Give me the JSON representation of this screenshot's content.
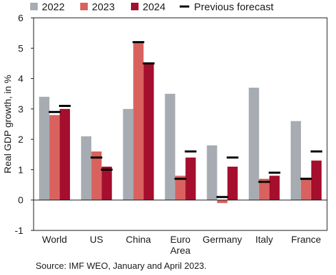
{
  "chart_data": {
    "type": "bar",
    "title": "",
    "xlabel": "",
    "ylabel": "Real GDP growth, in %",
    "ylim": [
      -1,
      6
    ],
    "yticks": [
      -1,
      0,
      1,
      2,
      3,
      4,
      5,
      6
    ],
    "categories": [
      [
        "World"
      ],
      [
        "US"
      ],
      [
        "China"
      ],
      [
        "Euro",
        "Area"
      ],
      [
        "Germany"
      ],
      [
        "Italy"
      ],
      [
        "France"
      ]
    ],
    "series": [
      {
        "name": "2022",
        "color": "#a6acb2",
        "values": [
          3.4,
          2.1,
          3.0,
          3.5,
          1.8,
          3.7,
          2.6
        ]
      },
      {
        "name": "2023",
        "color": "#d9625f",
        "values": [
          2.8,
          1.6,
          5.2,
          0.8,
          -0.1,
          0.7,
          0.7
        ]
      },
      {
        "name": "2024",
        "color": "#a50e2d",
        "values": [
          3.0,
          1.1,
          4.5,
          1.4,
          1.1,
          0.8,
          1.3
        ]
      }
    ],
    "previous_forecast": {
      "name": "Previous forecast",
      "color": "#000000",
      "values_2023": [
        2.9,
        1.4,
        5.2,
        0.7,
        0.1,
        0.6,
        0.7
      ],
      "values_2024": [
        3.1,
        1.0,
        4.5,
        1.6,
        1.4,
        0.9,
        1.6
      ]
    },
    "legend_position": "top",
    "grid": false
  },
  "source": "Source: IMF WEO, January and April 2023."
}
